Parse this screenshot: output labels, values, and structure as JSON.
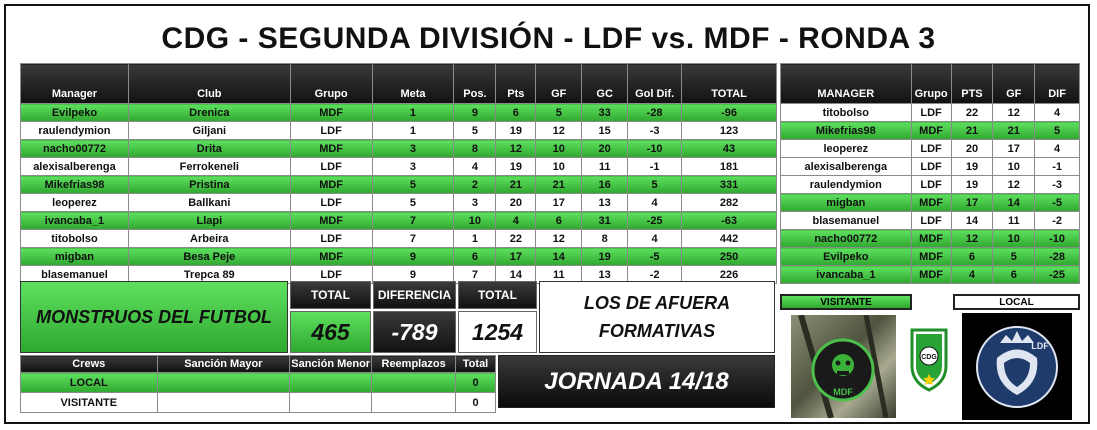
{
  "title": "CDG - SEGUNDA DIVISIÓN - LDF vs. MDF - RONDA 3",
  "table": {
    "headers": [
      "Manager",
      "Club",
      "Grupo",
      "Meta",
      "Pos.",
      "Pts",
      "GF",
      "GC",
      "Gol Dif.",
      "TOTAL"
    ],
    "rows": [
      {
        "c": [
          "Evilpeko",
          "Drenica",
          "MDF",
          "1",
          "9",
          "6",
          "5",
          "33",
          "-28",
          "-96"
        ],
        "green": true
      },
      {
        "c": [
          "raulendymion",
          "Giljani",
          "LDF",
          "1",
          "5",
          "19",
          "12",
          "15",
          "-3",
          "123"
        ],
        "green": false
      },
      {
        "c": [
          "nacho00772",
          "Drita",
          "MDF",
          "3",
          "8",
          "12",
          "10",
          "20",
          "-10",
          "43"
        ],
        "green": true
      },
      {
        "c": [
          "alexisalberenga",
          "Ferrokeneli",
          "LDF",
          "3",
          "4",
          "19",
          "10",
          "11",
          "-1",
          "181"
        ],
        "green": false
      },
      {
        "c": [
          "Mikefrias98",
          "Pristina",
          "MDF",
          "5",
          "2",
          "21",
          "21",
          "16",
          "5",
          "331"
        ],
        "green": true
      },
      {
        "c": [
          "leoperez",
          "Ballkani",
          "LDF",
          "5",
          "3",
          "20",
          "17",
          "13",
          "4",
          "282"
        ],
        "green": false
      },
      {
        "c": [
          "ivancaba_1",
          "Llapi",
          "MDF",
          "7",
          "10",
          "4",
          "6",
          "31",
          "-25",
          "-63"
        ],
        "green": true
      },
      {
        "c": [
          "titobolso",
          "Arbeira",
          "LDF",
          "7",
          "1",
          "22",
          "12",
          "8",
          "4",
          "442"
        ],
        "green": false
      },
      {
        "c": [
          "migban",
          "Besa Peje",
          "MDF",
          "9",
          "6",
          "17",
          "14",
          "19",
          "-5",
          "250"
        ],
        "green": true
      },
      {
        "c": [
          "blasemanuel",
          "Trepca 89",
          "LDF",
          "9",
          "7",
          "14",
          "11",
          "13",
          "-2",
          "226"
        ],
        "green": false
      }
    ]
  },
  "standings": {
    "headers": [
      "MANAGER",
      "Grupo",
      "PTS",
      "GF",
      "DIF"
    ],
    "rows": [
      {
        "c": [
          "titobolso",
          "LDF",
          "22",
          "12",
          "4"
        ],
        "green": false
      },
      {
        "c": [
          "Mikefrias98",
          "MDF",
          "21",
          "21",
          "5"
        ],
        "green": true
      },
      {
        "c": [
          "leoperez",
          "LDF",
          "20",
          "17",
          "4"
        ],
        "green": false
      },
      {
        "c": [
          "alexisalberenga",
          "LDF",
          "19",
          "10",
          "-1"
        ],
        "green": false
      },
      {
        "c": [
          "raulendymion",
          "LDF",
          "19",
          "12",
          "-3"
        ],
        "green": false
      },
      {
        "c": [
          "migban",
          "MDF",
          "17",
          "14",
          "-5"
        ],
        "green": true
      },
      {
        "c": [
          "blasemanuel",
          "LDF",
          "14",
          "11",
          "-2"
        ],
        "green": false
      },
      {
        "c": [
          "nacho00772",
          "MDF",
          "12",
          "10",
          "-10"
        ],
        "green": true
      },
      {
        "c": [
          "Evilpeko",
          "MDF",
          "6",
          "5",
          "-28"
        ],
        "green": true
      },
      {
        "c": [
          "ivancaba_1",
          "MDF",
          "4",
          "6",
          "-25"
        ],
        "green": true
      }
    ]
  },
  "summary": {
    "team_a": "MONSTRUOS DEL FUTBOL",
    "total_label": "TOTAL",
    "diff_label": "DIFERENCIA",
    "total_label_b": "TOTAL",
    "total_a": "465",
    "diff": "-789",
    "total_b": "1254",
    "team_b_line1": "LOS DE AFUERA",
    "team_b_line2": "FORMATIVAS"
  },
  "crews": {
    "headers": [
      "Crews",
      "Sanción Mayor",
      "Sanción Menor",
      "Reemplazos",
      "Total"
    ],
    "rows": [
      {
        "c": [
          "LOCAL",
          "",
          "",
          "",
          "0"
        ],
        "green": true
      },
      {
        "c": [
          "VISITANTE",
          "",
          "",
          "",
          "0"
        ],
        "green": false
      }
    ]
  },
  "jornada": "JORNADA 14/18",
  "visitante_label": "VISITANTE",
  "local_label": "LOCAL",
  "logos": {
    "mdf_emblem": "MDF",
    "cdg_emblem": "CDG",
    "ldf_emblem": "LDF"
  },
  "colors": {
    "green": "#3cc43c",
    "dark": "#111111"
  }
}
